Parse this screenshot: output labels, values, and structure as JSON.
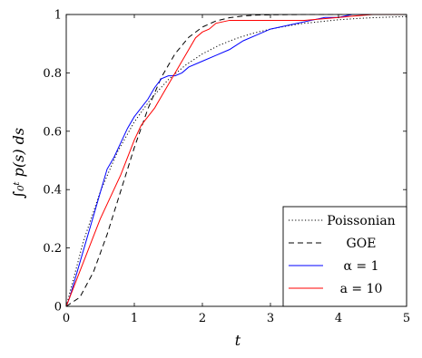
{
  "chart_data": {
    "type": "line",
    "title": "",
    "xlabel": "t",
    "ylabel": "∫₀ᵗ p(s) ds",
    "xlim": [
      0,
      5
    ],
    "ylim": [
      0,
      1
    ],
    "x_ticks": [
      0,
      1,
      2,
      3,
      4,
      5
    ],
    "x_tick_labels": [
      "0",
      "1",
      "2",
      "3",
      "4",
      "5"
    ],
    "y_ticks": [
      0,
      0.2,
      0.4,
      0.6,
      0.8,
      1
    ],
    "y_tick_labels": [
      "0",
      "0.2",
      "0.4",
      "0.6",
      "0.8",
      "1"
    ],
    "grid": false,
    "legend_position": "bottom-right",
    "series": [
      {
        "name": "Poissonian",
        "color": "#000000",
        "dash": "dotted",
        "x": [
          0,
          0.25,
          0.5,
          0.75,
          1.0,
          1.25,
          1.5,
          1.75,
          2.0,
          2.25,
          2.5,
          2.75,
          3.0,
          3.25,
          3.5,
          3.75,
          4.0,
          4.25,
          4.5,
          4.75,
          5.0
        ],
        "y": [
          0,
          0.221,
          0.393,
          0.528,
          0.632,
          0.713,
          0.777,
          0.826,
          0.865,
          0.895,
          0.918,
          0.936,
          0.95,
          0.961,
          0.97,
          0.976,
          0.982,
          0.986,
          0.989,
          0.991,
          0.993
        ]
      },
      {
        "name": "GOE",
        "color": "#000000",
        "dash": "dashed",
        "x": [
          0,
          0.2,
          0.4,
          0.6,
          0.8,
          1.0,
          1.2,
          1.4,
          1.6,
          1.8,
          2.0,
          2.2,
          2.4,
          2.6,
          2.8,
          3.0,
          3.5,
          4.0,
          5.0
        ],
        "y": [
          0,
          0.031,
          0.118,
          0.246,
          0.395,
          0.544,
          0.677,
          0.786,
          0.866,
          0.922,
          0.957,
          0.978,
          0.989,
          0.995,
          0.998,
          0.999,
          1.0,
          1.0,
          1.0
        ]
      },
      {
        "name": "α = 1",
        "color": "#0000ff",
        "dash": "solid",
        "x": [
          0,
          0.05,
          0.1,
          0.15,
          0.2,
          0.3,
          0.4,
          0.5,
          0.6,
          0.7,
          0.8,
          0.9,
          1.0,
          1.1,
          1.2,
          1.3,
          1.4,
          1.5,
          1.6,
          1.7,
          1.8,
          2.0,
          2.2,
          2.4,
          2.6,
          2.8,
          3.0,
          3.2,
          3.4,
          3.6,
          3.8,
          4.0,
          4.2,
          4.4,
          5.0
        ],
        "y": [
          0,
          0.03,
          0.07,
          0.11,
          0.15,
          0.23,
          0.31,
          0.39,
          0.47,
          0.51,
          0.56,
          0.61,
          0.65,
          0.68,
          0.71,
          0.75,
          0.78,
          0.79,
          0.79,
          0.8,
          0.82,
          0.84,
          0.86,
          0.88,
          0.91,
          0.93,
          0.95,
          0.96,
          0.97,
          0.98,
          0.99,
          0.99,
          1.0,
          1.0,
          1.0
        ]
      },
      {
        "name": "a = 10",
        "color": "#ff0000",
        "dash": "solid",
        "x": [
          0,
          0.1,
          0.2,
          0.3,
          0.4,
          0.5,
          0.6,
          0.7,
          0.8,
          0.9,
          1.0,
          1.1,
          1.2,
          1.3,
          1.4,
          1.5,
          1.6,
          1.7,
          1.8,
          1.9,
          2.0,
          2.1,
          2.2,
          2.4,
          2.6,
          3.0,
          3.5,
          4.0,
          4.5,
          5.0
        ],
        "y": [
          0,
          0.06,
          0.12,
          0.18,
          0.24,
          0.3,
          0.35,
          0.4,
          0.45,
          0.51,
          0.57,
          0.62,
          0.65,
          0.68,
          0.72,
          0.76,
          0.8,
          0.84,
          0.88,
          0.92,
          0.94,
          0.95,
          0.97,
          0.98,
          0.98,
          0.98,
          0.98,
          0.99,
          1.0,
          1.0
        ]
      }
    ]
  }
}
